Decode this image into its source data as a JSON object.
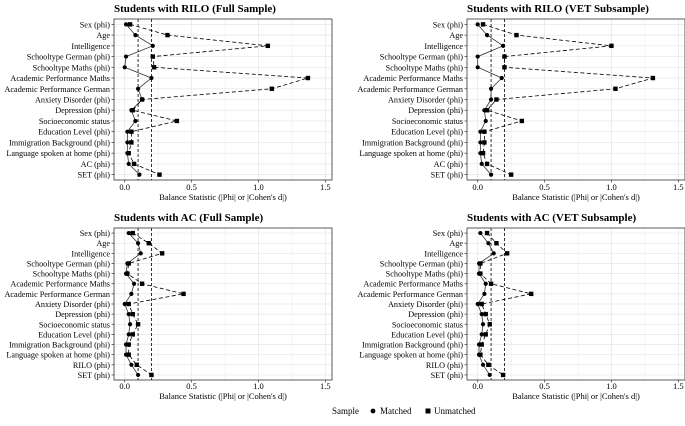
{
  "legend": {
    "title": "Sample",
    "items": [
      {
        "label": "Matched",
        "marker": "circle"
      },
      {
        "label": "Unmatched",
        "marker": "square"
      }
    ]
  },
  "chart_data": [
    {
      "type": "scatter",
      "title": "Students with RILO (Full Sample)",
      "xlabel": "Balance Statistic (|Phi| or |Cohen's d|)",
      "ylabel": "",
      "xlim": [
        -0.08,
        1.55
      ],
      "xticks": [
        0.0,
        0.5,
        1.0,
        1.5
      ],
      "xtick_labels": [
        "0.0",
        "0.5",
        "1.0",
        "1.5"
      ],
      "reference_lines": [
        0.1,
        0.2
      ],
      "grid": true,
      "categories": [
        "Sex (phi)",
        "Age",
        "Intelligence",
        "Schooltype German (phi)",
        "Schooltype Maths (phi)",
        "Academic Performance Maths",
        "Academic Performance German",
        "Anxiety Disorder (phi)",
        "Depression (phi)",
        "Socioeconomic status",
        "Education Level (phi)",
        "Immigration Background (phi)",
        "Language spoken at home (phi)",
        "AC (phi)",
        "SET (phi)"
      ],
      "series": [
        {
          "name": "Matched",
          "marker": "circle",
          "line": "solid",
          "values": [
            0.01,
            0.08,
            0.21,
            0.01,
            0.0,
            0.2,
            0.1,
            0.13,
            0.05,
            0.08,
            0.02,
            0.02,
            0.02,
            0.03,
            0.11
          ]
        },
        {
          "name": "Unmatched",
          "marker": "square",
          "line": "dashed",
          "values": [
            0.04,
            0.32,
            1.07,
            0.21,
            0.22,
            1.37,
            1.1,
            0.13,
            0.06,
            0.39,
            0.05,
            0.05,
            0.03,
            0.07,
            0.26
          ]
        }
      ]
    },
    {
      "type": "scatter",
      "title": "Students with RILO (VET Subsample)",
      "xlabel": "Balance Statistic (|Phi| or |Cohen's d|)",
      "ylabel": "",
      "xlim": [
        -0.08,
        1.55
      ],
      "xticks": [
        0.0,
        0.5,
        1.0,
        1.5
      ],
      "xtick_labels": [
        "0.0",
        "0.5",
        "1.0",
        "1.5"
      ],
      "reference_lines": [
        0.1,
        0.2
      ],
      "grid": true,
      "categories": [
        "Sex (phi)",
        "Age",
        "Intelligence",
        "Schooltype German (phi)",
        "Schooltype Maths (phi)",
        "Academic Performance Maths",
        "Academic Performance German",
        "Anxiety Disorder (phi)",
        "Depression (phi)",
        "Socioeconomic status",
        "Education Level (phi)",
        "Immigration Background (phi)",
        "Language spoken at home (phi)",
        "AC (phi)",
        "SET (phi)"
      ],
      "series": [
        {
          "name": "Matched",
          "marker": "circle",
          "line": "solid",
          "values": [
            0.0,
            0.07,
            0.19,
            0.0,
            0.0,
            0.18,
            0.1,
            0.1,
            0.05,
            0.06,
            0.02,
            0.02,
            0.02,
            0.03,
            0.1
          ]
        },
        {
          "name": "Unmatched",
          "marker": "square",
          "line": "dashed",
          "values": [
            0.04,
            0.29,
            1.0,
            0.2,
            0.2,
            1.31,
            1.03,
            0.14,
            0.07,
            0.33,
            0.05,
            0.05,
            0.04,
            0.07,
            0.25
          ]
        }
      ]
    },
    {
      "type": "scatter",
      "title": "Students with AC (Full Sample)",
      "xlabel": "Balance Statistic (|Phi| or |Cohen's d|)",
      "ylabel": "",
      "xlim": [
        -0.08,
        1.55
      ],
      "xticks": [
        0.0,
        0.5,
        1.0,
        1.5
      ],
      "xtick_labels": [
        "0.0",
        "0.5",
        "1.0",
        "1.5"
      ],
      "reference_lines": [
        0.1,
        0.2
      ],
      "grid": true,
      "categories": [
        "Sex (phi)",
        "Age",
        "Intelligence",
        "Schooltype German (phi)",
        "Schooltype Maths (phi)",
        "Academic Performance Maths",
        "Academic Performance German",
        "Anxiety Disorder (phi)",
        "Depression (phi)",
        "Socioeconomic status",
        "Education Level (phi)",
        "Immigration Background (phi)",
        "Language spoken at home (phi)",
        "RILO (phi)",
        "SET (phi)"
      ],
      "series": [
        {
          "name": "Matched",
          "marker": "circle",
          "line": "solid",
          "values": [
            0.03,
            0.1,
            0.12,
            0.02,
            0.01,
            0.07,
            0.05,
            0.0,
            0.03,
            0.04,
            0.03,
            0.01,
            0.01,
            0.05,
            0.1
          ]
        },
        {
          "name": "Unmatched",
          "marker": "square",
          "line": "dashed",
          "values": [
            0.06,
            0.18,
            0.28,
            0.03,
            0.02,
            0.13,
            0.44,
            0.03,
            0.06,
            0.1,
            0.06,
            0.03,
            0.03,
            0.09,
            0.2
          ]
        }
      ]
    },
    {
      "type": "scatter",
      "title": "Students with AC (VET Subsample)",
      "xlabel": "Balance Statistic (|Phi| or |Cohen's d|)",
      "ylabel": "",
      "xlim": [
        -0.08,
        1.55
      ],
      "xticks": [
        0.0,
        0.5,
        1.0,
        1.5
      ],
      "xtick_labels": [
        "0.0",
        "0.5",
        "1.0",
        "1.5"
      ],
      "reference_lines": [
        0.1,
        0.2
      ],
      "grid": true,
      "categories": [
        "Sex (phi)",
        "Age",
        "Intelligence",
        "Schooltype German (phi)",
        "Schooltype Maths (phi)",
        "Academic Performance Maths",
        "Academic Performance German",
        "Anxiety Disorder (phi)",
        "Depression (phi)",
        "Socioeconomic status",
        "Education Level (phi)",
        "Immigration Background (phi)",
        "Language spoken at home (phi)",
        "RILO (phi)",
        "SET (phi)"
      ],
      "series": [
        {
          "name": "Matched",
          "marker": "circle",
          "line": "solid",
          "values": [
            0.02,
            0.08,
            0.12,
            0.01,
            0.01,
            0.06,
            0.05,
            0.0,
            0.03,
            0.04,
            0.03,
            0.01,
            0.01,
            0.04,
            0.09
          ]
        },
        {
          "name": "Unmatched",
          "marker": "square",
          "line": "dashed",
          "values": [
            0.07,
            0.14,
            0.22,
            0.02,
            0.02,
            0.1,
            0.4,
            0.03,
            0.06,
            0.09,
            0.06,
            0.03,
            0.02,
            0.08,
            0.19
          ]
        }
      ]
    }
  ]
}
